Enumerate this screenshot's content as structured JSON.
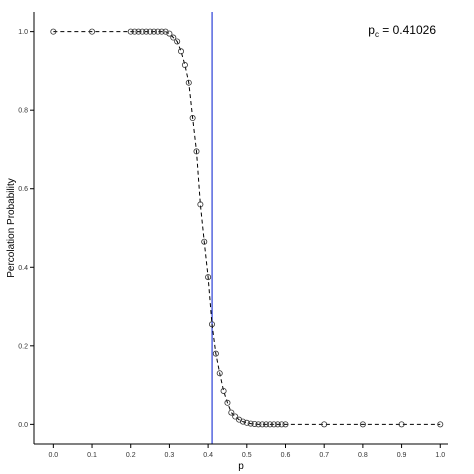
{
  "chart_data": {
    "type": "line",
    "title": "",
    "xlabel": "p",
    "ylabel": "Percolation Probability",
    "xlim": [
      -0.05,
      1.02
    ],
    "ylim": [
      -0.05,
      1.05
    ],
    "x_ticks": [
      0.0,
      0.1,
      0.2,
      0.3,
      0.4,
      0.5,
      0.6,
      0.7,
      0.8,
      0.9,
      1.0
    ],
    "x_tick_labels": [
      "0.0",
      "0.1",
      "0.2",
      "0.3",
      "0.4",
      "0.5",
      "0.6",
      "0.7",
      "0.8",
      "0.9",
      "1.0"
    ],
    "y_ticks": [
      0.0,
      0.2,
      0.4,
      0.6,
      0.8,
      1.0
    ],
    "y_tick_labels": [
      "0.0",
      "0.2",
      "0.4",
      "0.6",
      "0.8",
      "1.0"
    ],
    "grid": false,
    "annotation": {
      "prefix": "p",
      "subscript": "c",
      "suffix": " = 0.41026"
    },
    "critical_line": {
      "x": 0.41026,
      "color": "#2a3fd6"
    },
    "line_style": "dashed",
    "colors": {
      "line": "#000000",
      "marker_stroke": "#333333",
      "axis": "#000000"
    },
    "series": [
      {
        "x": [
          0.0,
          0.1,
          0.2,
          0.21,
          0.22,
          0.23,
          0.24,
          0.25,
          0.26,
          0.27,
          0.28,
          0.29,
          0.3,
          0.31,
          0.32,
          0.33,
          0.34,
          0.35,
          0.36,
          0.37,
          0.38,
          0.39,
          0.4,
          0.41,
          0.42,
          0.43,
          0.44,
          0.45,
          0.46,
          0.47,
          0.48,
          0.49,
          0.5,
          0.51,
          0.52,
          0.53,
          0.54,
          0.55,
          0.56,
          0.57,
          0.58,
          0.59,
          0.6,
          0.7,
          0.8,
          0.9,
          1.0
        ],
        "y": [
          1.0,
          1.0,
          1.0,
          1.0,
          1.0,
          1.0,
          1.0,
          1.0,
          1.0,
          1.0,
          1.0,
          1.0,
          0.995,
          0.985,
          0.975,
          0.95,
          0.915,
          0.87,
          0.78,
          0.695,
          0.56,
          0.465,
          0.375,
          0.255,
          0.18,
          0.13,
          0.085,
          0.055,
          0.03,
          0.02,
          0.012,
          0.007,
          0.004,
          0.002,
          0.001,
          0.0,
          0.0,
          0.0,
          0.0,
          0.0,
          0.0,
          0.0,
          0.0,
          0.0,
          0.0,
          0.0,
          0.0
        ]
      }
    ]
  }
}
